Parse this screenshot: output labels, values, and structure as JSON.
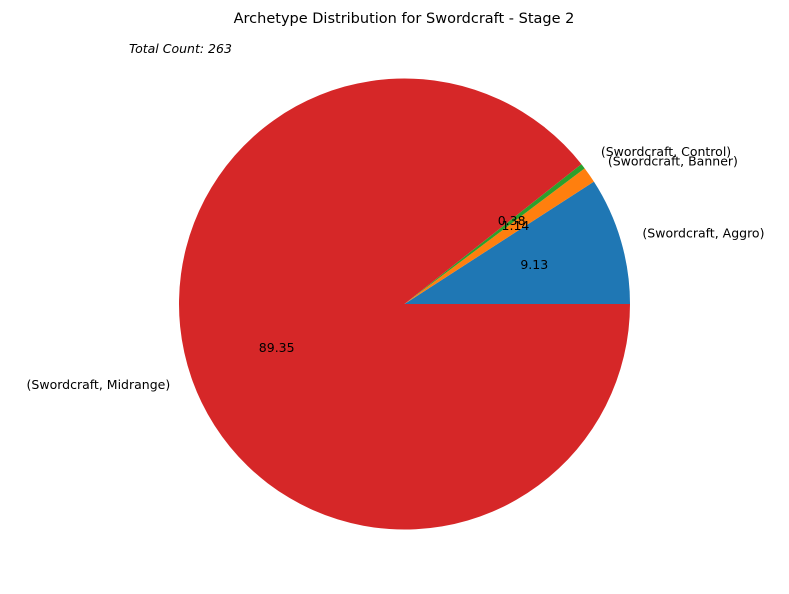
{
  "chart_data": {
    "type": "pie",
    "title": "Archetype Distribution for Swordcraft - Stage 2",
    "annotation": "Total Count: 263",
    "start_angle_deg": 0,
    "direction": "counterclockwise",
    "slices": [
      {
        "label": "(Swordcraft, Aggro)",
        "value": 9.13,
        "value_label": "9.13",
        "color": "#1f77b4"
      },
      {
        "label": "(Swordcraft, Banner)",
        "value": 1.14,
        "value_label": "1.14",
        "color": "#ff7f0e"
      },
      {
        "label": "(Swordcraft, Control)",
        "value": 0.38,
        "value_label": "0.38",
        "color": "#2ca02c"
      },
      {
        "label": "(Swordcraft, Midrange)",
        "value": 89.35,
        "value_label": "89.35",
        "color": "#d62728"
      }
    ]
  }
}
